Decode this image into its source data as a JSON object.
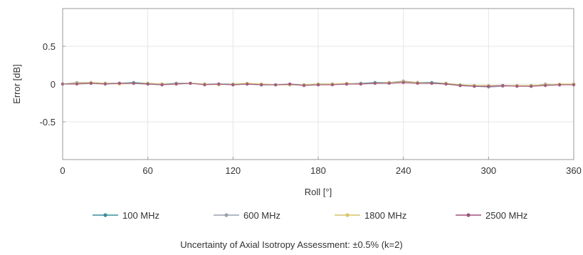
{
  "chart_data": {
    "type": "line",
    "xlabel": "Roll [°]",
    "ylabel": "Error [dB]",
    "xlim": [
      0,
      360
    ],
    "ylim": [
      -1,
      1
    ],
    "xticks": [
      "0",
      "60",
      "120",
      "180",
      "240",
      "300",
      "360"
    ],
    "yticks": [
      "0.5",
      "0",
      "-0.5"
    ],
    "grid": true,
    "legend_position": "bottom",
    "x": [
      0,
      10,
      20,
      30,
      40,
      50,
      60,
      70,
      80,
      90,
      100,
      110,
      120,
      130,
      140,
      150,
      160,
      170,
      180,
      190,
      200,
      210,
      220,
      230,
      240,
      250,
      260,
      270,
      280,
      290,
      300,
      310,
      320,
      330,
      340,
      350,
      360
    ],
    "series": [
      {
        "name": "100 MHz",
        "color": "#3a8f9c",
        "values": [
          0.0,
          0.01,
          0.01,
          0.01,
          0.01,
          0.02,
          0.01,
          0.0,
          0.01,
          0.01,
          0.0,
          0.0,
          0.0,
          0.0,
          -0.01,
          -0.01,
          -0.01,
          -0.01,
          0.0,
          0.0,
          0.0,
          0.01,
          0.02,
          0.02,
          0.03,
          0.02,
          0.02,
          0.01,
          -0.01,
          -0.02,
          -0.03,
          -0.02,
          -0.02,
          -0.02,
          -0.01,
          -0.01,
          0.0
        ]
      },
      {
        "name": "600 MHz",
        "color": "#9aa0b0",
        "values": [
          0.0,
          0.02,
          0.02,
          0.01,
          0.01,
          0.01,
          0.0,
          -0.01,
          0.01,
          0.01,
          0.0,
          0.0,
          -0.01,
          0.0,
          0.0,
          -0.01,
          0.0,
          -0.01,
          -0.01,
          0.0,
          0.0,
          0.01,
          0.01,
          0.02,
          0.04,
          0.02,
          0.01,
          0.0,
          -0.02,
          -0.03,
          -0.04,
          -0.03,
          -0.02,
          -0.03,
          0.0,
          -0.01,
          0.0
        ]
      },
      {
        "name": "1800 MHz",
        "color": "#d8c468",
        "values": [
          0.0,
          0.01,
          0.02,
          0.01,
          0.0,
          0.01,
          0.01,
          0.0,
          0.0,
          0.01,
          0.0,
          -0.01,
          0.0,
          0.01,
          0.0,
          -0.01,
          -0.01,
          -0.01,
          0.0,
          0.0,
          0.01,
          0.0,
          0.01,
          0.02,
          0.03,
          0.02,
          0.01,
          0.01,
          -0.01,
          -0.02,
          -0.02,
          -0.02,
          -0.02,
          -0.02,
          -0.01,
          0.0,
          0.0
        ]
      },
      {
        "name": "2500 MHz",
        "color": "#a0527a",
        "values": [
          0.0,
          0.0,
          0.01,
          0.0,
          0.01,
          0.01,
          0.0,
          -0.01,
          0.0,
          0.01,
          -0.01,
          0.0,
          -0.01,
          0.0,
          -0.01,
          -0.01,
          0.0,
          -0.02,
          -0.01,
          -0.01,
          0.0,
          0.0,
          0.01,
          0.01,
          0.02,
          0.01,
          0.01,
          0.0,
          -0.02,
          -0.03,
          -0.03,
          -0.02,
          -0.03,
          -0.03,
          -0.02,
          -0.01,
          -0.01
        ]
      }
    ],
    "annotation": "Uncertainty of Axial Isotropy Assessment: ±0.5% (k=2)"
  }
}
